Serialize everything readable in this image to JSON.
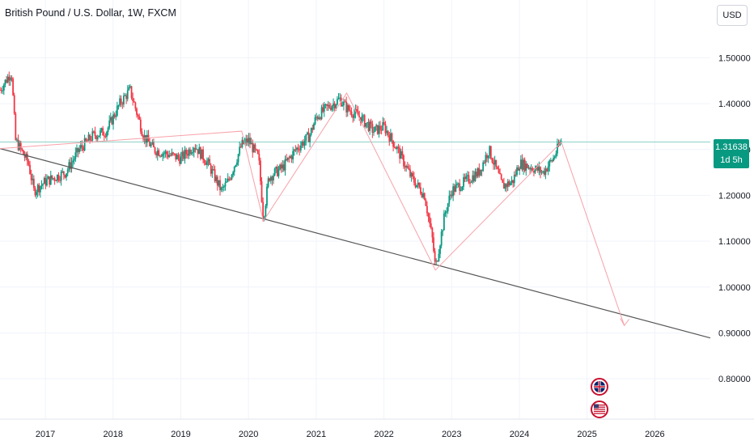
{
  "header": {
    "title": "British Pound / U.S. Dollar, 1W, FXCM",
    "currency": "USD"
  },
  "price_badge": {
    "price": "1.31638",
    "countdown": "1d 5h"
  },
  "colors": {
    "up": "#089981",
    "down": "#f23645",
    "grid": "#f0f3fa",
    "trendline": "#555555",
    "pattern": "#f7a1a9",
    "price_line": "#089981"
  },
  "chart_data": {
    "type": "candlestick",
    "instrument": "British Pound / U.S. Dollar",
    "timeframe": "1W",
    "source": "FXCM",
    "x_ticks": [
      "2017",
      "2018",
      "2019",
      "2020",
      "2021",
      "2022",
      "2023",
      "2024",
      "2025",
      "2026"
    ],
    "y_ticks": [
      "1.50000",
      "1.40000",
      "1.30000",
      "1.20000",
      "1.10000",
      "1.00000",
      "0.90000",
      "0.80000"
    ],
    "xlim": [
      2016.33,
      2026.82
    ],
    "ylim": [
      0.712,
      1.626
    ],
    "last_price": 1.31638,
    "price_path": [
      [
        2016.33,
        1.43
      ],
      [
        2016.5,
        1.47
      ],
      [
        2016.56,
        1.32
      ],
      [
        2016.75,
        1.27
      ],
      [
        2016.83,
        1.21
      ],
      [
        2017.0,
        1.23
      ],
      [
        2017.3,
        1.25
      ],
      [
        2017.5,
        1.3
      ],
      [
        2017.7,
        1.33
      ],
      [
        2017.9,
        1.34
      ],
      [
        2018.1,
        1.4
      ],
      [
        2018.25,
        1.43
      ],
      [
        2018.45,
        1.33
      ],
      [
        2018.6,
        1.3
      ],
      [
        2018.8,
        1.29
      ],
      [
        2019.0,
        1.28
      ],
      [
        2019.2,
        1.31
      ],
      [
        2019.4,
        1.27
      ],
      [
        2019.6,
        1.21
      ],
      [
        2019.7,
        1.23
      ],
      [
        2019.9,
        1.31
      ],
      [
        2020.0,
        1.32
      ],
      [
        2020.15,
        1.28
      ],
      [
        2020.22,
        1.15
      ],
      [
        2020.3,
        1.24
      ],
      [
        2020.5,
        1.26
      ],
      [
        2020.7,
        1.3
      ],
      [
        2020.9,
        1.33
      ],
      [
        2021.0,
        1.37
      ],
      [
        2021.15,
        1.39
      ],
      [
        2021.35,
        1.41
      ],
      [
        2021.45,
        1.39
      ],
      [
        2021.65,
        1.37
      ],
      [
        2021.85,
        1.34
      ],
      [
        2022.0,
        1.35
      ],
      [
        2022.2,
        1.3
      ],
      [
        2022.4,
        1.24
      ],
      [
        2022.6,
        1.2
      ],
      [
        2022.72,
        1.1
      ],
      [
        2022.76,
        1.04
      ],
      [
        2022.9,
        1.16
      ],
      [
        2023.0,
        1.21
      ],
      [
        2023.2,
        1.23
      ],
      [
        2023.4,
        1.25
      ],
      [
        2023.55,
        1.3
      ],
      [
        2023.75,
        1.22
      ],
      [
        2023.9,
        1.23
      ],
      [
        2024.0,
        1.27
      ],
      [
        2024.2,
        1.26
      ],
      [
        2024.35,
        1.25
      ],
      [
        2024.5,
        1.28
      ],
      [
        2024.62,
        1.32
      ]
    ],
    "annotations": {
      "trendline": [
        [
          2016.33,
          1.302
        ],
        [
          2026.82,
          0.889
        ]
      ],
      "zigzag": [
        [
          2016.33,
          1.302
        ],
        [
          2019.9,
          1.34
        ],
        [
          2020.22,
          1.144
        ],
        [
          2021.45,
          1.423
        ],
        [
          2022.76,
          1.037
        ],
        [
          2024.62,
          1.316
        ],
        [
          2025.55,
          0.916
        ]
      ],
      "projection_arrow_end": [
        2025.55,
        0.916
      ],
      "event_icons": [
        "UK flag",
        "US flag"
      ]
    }
  }
}
